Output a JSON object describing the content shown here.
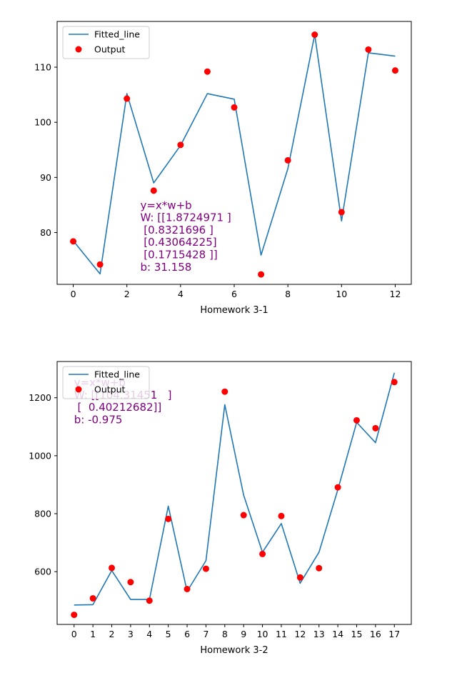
{
  "chart_data": [
    {
      "type": "line",
      "xlabel": "Homework 3-1",
      "xlim": [
        -0.6,
        12.6
      ],
      "ylim": [
        70.6,
        118.3
      ],
      "xticks": [
        0,
        2,
        4,
        6,
        8,
        10,
        12
      ],
      "yticks": [
        80,
        90,
        100,
        110
      ],
      "legend": {
        "position": "top-left",
        "entries": [
          "Fitted_line",
          "Output"
        ]
      },
      "annotation": [
        "y=x*w+b",
        "W: [[1.8724971 ]",
        " [0.8321696 ]",
        " [0.43064225]",
        " [0.1715428 ]]",
        "b: 31.158"
      ],
      "annotation_anchor": [
        2.5,
        84.3
      ],
      "series": [
        {
          "name": "Fitted_line",
          "style": "line",
          "color": "#1f77b4",
          "x": [
            0,
            1,
            2,
            3,
            4,
            5,
            6,
            7,
            8,
            9,
            10,
            11,
            12
          ],
          "y": [
            78.5,
            72.5,
            105.2,
            89.0,
            95.8,
            105.2,
            104.2,
            75.9,
            91.6,
            115.9,
            82.1,
            112.6,
            112.0
          ]
        },
        {
          "name": "Output",
          "style": "scatter",
          "color": "#ff0000",
          "x": [
            0,
            1,
            2,
            3,
            4,
            5,
            6,
            7,
            8,
            9,
            10,
            11,
            12
          ],
          "y": [
            78.4,
            74.2,
            104.3,
            87.6,
            95.9,
            109.2,
            102.7,
            72.4,
            93.1,
            115.9,
            83.7,
            113.2,
            109.4
          ]
        }
      ]
    },
    {
      "type": "line",
      "xlabel": "Homework 3-2",
      "xlim": [
        -0.9,
        17.9
      ],
      "ylim": [
        418,
        1325
      ],
      "xticks": [
        0,
        1,
        2,
        3,
        4,
        5,
        6,
        7,
        8,
        9,
        10,
        11,
        12,
        13,
        14,
        15,
        16,
        17
      ],
      "yticks": [
        600,
        800,
        1000,
        1200
      ],
      "legend": {
        "position": "top-left",
        "entries": [
          "Fitted_line",
          "Output"
        ]
      },
      "annotation": [
        "y=x*w+b",
        "W: [[104.31451   ]",
        " [  0.40212682]]",
        "b: -0.975"
      ],
      "annotation_anchor": [
        0,
        1240
      ],
      "series": [
        {
          "name": "Fitted_line",
          "style": "line",
          "color": "#1f77b4",
          "x": [
            0,
            1,
            2,
            3,
            4,
            5,
            6,
            7,
            8,
            9,
            10,
            11,
            12,
            13,
            14,
            15,
            16,
            17
          ],
          "y": [
            485,
            486,
            604,
            504,
            504,
            826,
            532,
            638,
            1176,
            864,
            667,
            766,
            560,
            667,
            883,
            1115,
            1045,
            1286
          ]
        },
        {
          "name": "Output",
          "style": "scatter",
          "color": "#ff0000",
          "x": [
            0,
            1,
            2,
            3,
            4,
            5,
            6,
            7,
            8,
            9,
            10,
            11,
            12,
            13,
            14,
            15,
            16,
            17
          ],
          "y": [
            451,
            508,
            613,
            564,
            500,
            782,
            540,
            610,
            1221,
            795,
            661,
            792,
            580,
            612,
            891,
            1122,
            1095,
            1254
          ]
        }
      ]
    }
  ]
}
